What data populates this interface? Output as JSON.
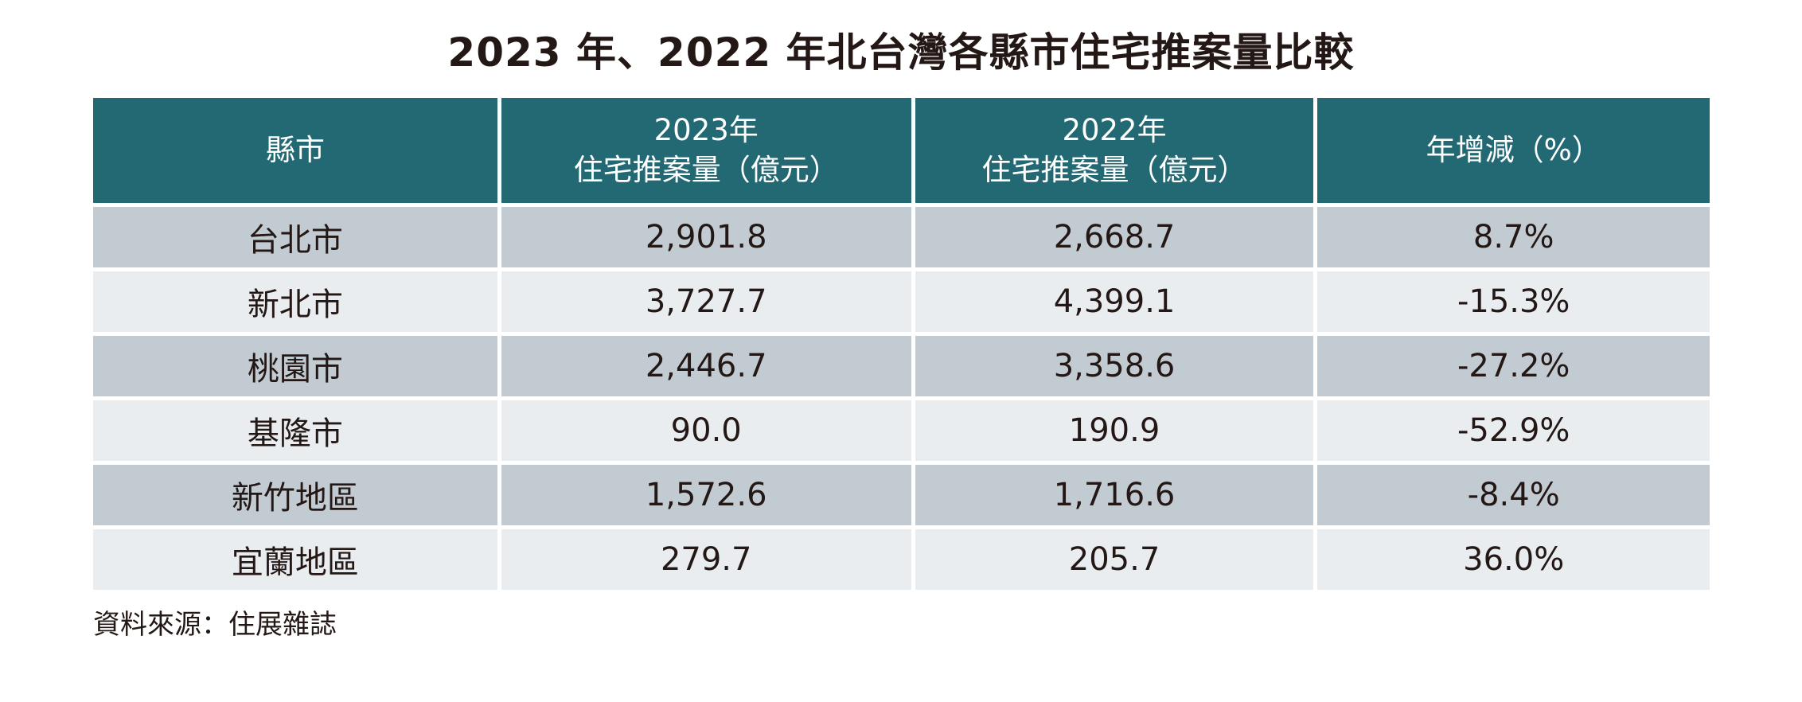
{
  "page": {
    "title": "2023 年、2022 年北台灣各縣市住宅推案量比較",
    "source_note": "資料來源：住展雜誌"
  },
  "colors": {
    "header_bg": "#236973",
    "header_text": "#FFFFFF",
    "row_odd_bg": "#C2CBD1",
    "row_even_bg": "#E9EDF0",
    "body_text": "#231815",
    "divider": "#FFFFFF"
  },
  "table": {
    "columns": [
      {
        "line1": "縣市",
        "line2": ""
      },
      {
        "line1": "2023年",
        "line2": "住宅推案量（億元）"
      },
      {
        "line1": "2022年",
        "line2": "住宅推案量（億元）"
      },
      {
        "line1": "年增減（%）",
        "line2": ""
      }
    ]
  },
  "chart_data": {
    "type": "table",
    "title": "2023 年、2022 年北台灣各縣市住宅推案量比較",
    "columns": [
      "縣市",
      "2023年住宅推案量（億元）",
      "2022年住宅推案量（億元）",
      "年增減（%）"
    ],
    "rows": [
      [
        "台北市",
        "2,901.8",
        "2,668.7",
        "8.7%"
      ],
      [
        "新北市",
        "3,727.7",
        "4,399.1",
        "-15.3%"
      ],
      [
        "桃園市",
        "2,446.7",
        "3,358.6",
        "-27.2%"
      ],
      [
        "基隆市",
        "90.0",
        "190.9",
        "-52.9%"
      ],
      [
        "新竹地區",
        "1,572.6",
        "1,716.6",
        "-8.4%"
      ],
      [
        "宜蘭地區",
        "279.7",
        "205.7",
        "36.0%"
      ]
    ],
    "numeric": {
      "categories": [
        "台北市",
        "新北市",
        "桃園市",
        "基隆市",
        "新竹地區",
        "宜蘭地區"
      ],
      "series": [
        {
          "name": "2023年住宅推案量（億元）",
          "values": [
            2901.8,
            3727.7,
            2446.7,
            90.0,
            1572.6,
            279.7
          ]
        },
        {
          "name": "2022年住宅推案量（億元）",
          "values": [
            2668.7,
            4399.1,
            3358.6,
            190.9,
            1716.6,
            205.7
          ]
        },
        {
          "name": "年增減（%）",
          "values": [
            8.7,
            -15.3,
            -27.2,
            -52.9,
            -8.4,
            36.0
          ]
        }
      ],
      "source": "資料來源：住展雜誌"
    }
  }
}
